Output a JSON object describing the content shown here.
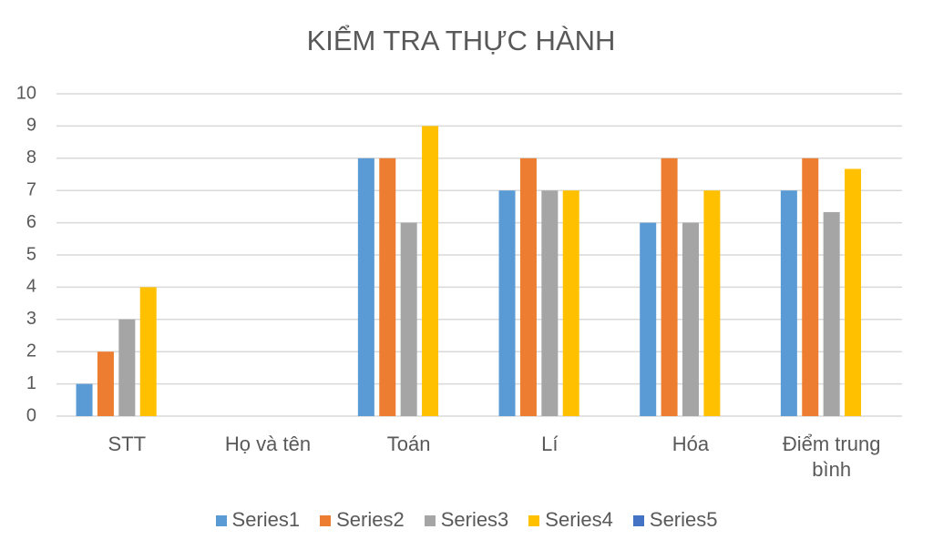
{
  "chart_data": {
    "type": "bar",
    "title": "KIỂM TRA THỰC HÀNH",
    "categories": [
      "STT",
      "Họ và tên",
      "Toán",
      "Lí",
      "Hóa",
      "Điểm trung bình"
    ],
    "series": [
      {
        "name": "Series1",
        "color": "#5b9bd5",
        "values": [
          1,
          null,
          8,
          7,
          6,
          7
        ]
      },
      {
        "name": "Series2",
        "color": "#ed7d31",
        "values": [
          2,
          null,
          8,
          8,
          8,
          8
        ]
      },
      {
        "name": "Series3",
        "color": "#a5a5a5",
        "values": [
          3,
          null,
          6,
          7,
          6,
          6.33
        ]
      },
      {
        "name": "Series4",
        "color": "#ffc000",
        "values": [
          4,
          null,
          9,
          7,
          7,
          7.67
        ]
      },
      {
        "name": "Series5",
        "color": "#4472c4",
        "values": [
          null,
          null,
          null,
          null,
          null,
          null
        ]
      }
    ],
    "ylim": [
      0,
      10
    ],
    "yticks": [
      0,
      1,
      2,
      3,
      4,
      5,
      6,
      7,
      8,
      9,
      10
    ],
    "grid": true,
    "legend": "bottom"
  }
}
